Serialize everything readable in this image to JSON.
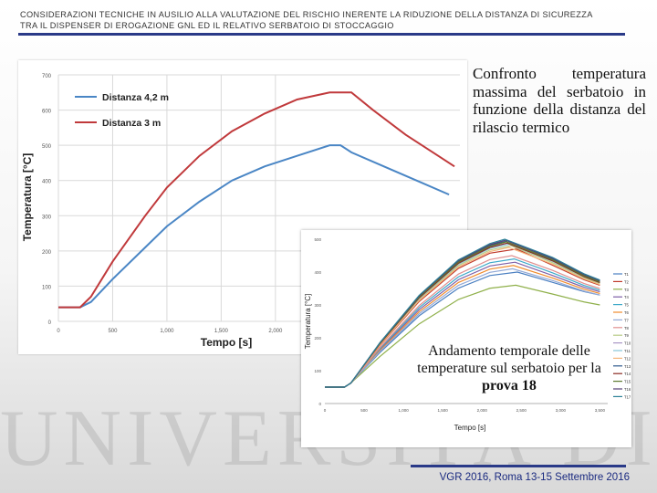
{
  "header": {
    "title_line1": "CONSIDERAZIONI TECNICHE IN AUSILIO ALLA VALUTAZIONE DEL RISCHIO INERENTE LA RIDUZIONE DELLA DISTANZA DI SICUREZZA",
    "title_line2": "TRA IL DISPENSER DI EROGAZIONE GNL ED IL RELATIVO SERBATOIO DI STOCCAGGIO"
  },
  "watermark": {
    "text": "UNIVERSITÀ DI PISA"
  },
  "captions": {
    "chart1": "Confronto temperatura massima del serbatoio in funzione della distanza del rilascio termico",
    "chart2_prefix": "Andamento temporale delle temperature sul serbatoio per la",
    "chart2_bold": "prova 18"
  },
  "footer": {
    "text": "VGR 2016,  Roma  13-15 Settembre 2016"
  },
  "colors": {
    "accent": "#2a3a88",
    "series_blue": "#4a86c5",
    "series_red": "#c0393b"
  },
  "chart_data": [
    {
      "type": "line",
      "xlabel": "Tempo [s]",
      "ylabel": "Temperatura [°C]",
      "x_ticks": [
        "0",
        "500",
        "1,000",
        "1,500",
        "2,000"
      ],
      "y_ticks": [
        "0",
        "100",
        "200",
        "300",
        "400",
        "500",
        "600",
        "700"
      ],
      "xlim": [
        0,
        3700
      ],
      "ylim": [
        0,
        700
      ],
      "grid": true,
      "legend": "top-left",
      "series": [
        {
          "name": "Distanza 4,2 m",
          "color": "#4a86c5",
          "x": [
            0,
            200,
            300,
            500,
            800,
            1000,
            1300,
            1600,
            1900,
            2200,
            2500,
            2600,
            2700,
            3000,
            3300,
            3600
          ],
          "y": [
            40,
            40,
            55,
            120,
            210,
            270,
            340,
            400,
            440,
            470,
            500,
            500,
            480,
            440,
            400,
            360
          ]
        },
        {
          "name": "Distanza 3 m",
          "color": "#c0393b",
          "x": [
            0,
            200,
            300,
            500,
            800,
            1000,
            1300,
            1600,
            1900,
            2200,
            2500,
            2700,
            2900,
            3200,
            3500,
            3650
          ],
          "y": [
            40,
            40,
            70,
            170,
            300,
            380,
            470,
            540,
            590,
            630,
            650,
            650,
            600,
            530,
            470,
            440
          ]
        }
      ]
    },
    {
      "type": "line",
      "xlabel": "Tempo [s]",
      "ylabel": "Temperatura [°C]",
      "x_ticks": [
        "0",
        "500",
        "1,000",
        "1,500",
        "2,000",
        "2,500",
        "3,000",
        "3,500"
      ],
      "y_ticks": [
        "0",
        "100",
        "200",
        "300",
        "400",
        "500"
      ],
      "xlim": [
        0,
        3600
      ],
      "ylim": [
        0,
        500
      ],
      "legend": "right",
      "legend_labels": [
        "T1",
        "T2",
        "T3",
        "T4",
        "T5",
        "T6",
        "T7",
        "T8",
        "T9",
        "T10",
        "T11",
        "T12",
        "T13",
        "T14",
        "T15",
        "T16",
        "T17"
      ],
      "series": [
        {
          "name": "T1",
          "color": "#4a7fc1",
          "peak": 400,
          "end": 330
        },
        {
          "name": "T2",
          "color": "#c0392b",
          "peak": 470,
          "end": 360
        },
        {
          "name": "T3",
          "color": "#8fb04a",
          "peak": 360,
          "end": 300
        },
        {
          "name": "T4",
          "color": "#7e5fa6",
          "peak": 430,
          "end": 340
        },
        {
          "name": "T5",
          "color": "#3ca9c9",
          "peak": 440,
          "end": 345
        },
        {
          "name": "T6",
          "color": "#f08c2d",
          "peak": 420,
          "end": 335
        },
        {
          "name": "T7",
          "color": "#92a9d6",
          "peak": 410,
          "end": 330
        },
        {
          "name": "T8",
          "color": "#e08f8f",
          "peak": 450,
          "end": 350
        },
        {
          "name": "T9",
          "color": "#b8cc86",
          "peak": 480,
          "end": 365
        },
        {
          "name": "T10",
          "color": "#a996c6",
          "peak": 490,
          "end": 370
        },
        {
          "name": "T11",
          "color": "#86c6d9",
          "peak": 485,
          "end": 368
        },
        {
          "name": "T12",
          "color": "#f4b57a",
          "peak": 475,
          "end": 362
        },
        {
          "name": "T13",
          "color": "#2f5a8e",
          "peak": 495,
          "end": 372
        },
        {
          "name": "T14",
          "color": "#8b2a22",
          "peak": 488,
          "end": 368
        },
        {
          "name": "T15",
          "color": "#5d7a2e",
          "peak": 492,
          "end": 370
        },
        {
          "name": "T16",
          "color": "#553f75",
          "peak": 497,
          "end": 374
        },
        {
          "name": "T17",
          "color": "#2a7f96",
          "peak": 500,
          "end": 376
        }
      ]
    }
  ]
}
